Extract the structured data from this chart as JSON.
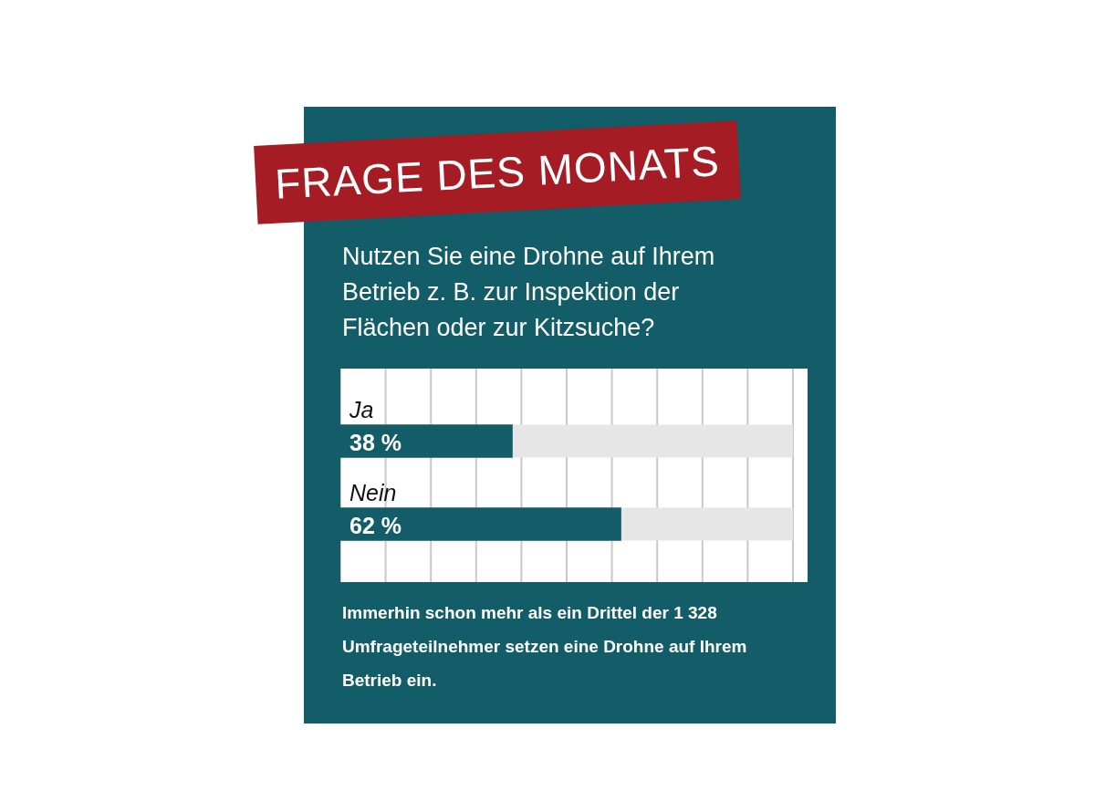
{
  "chart_data": {
    "type": "bar",
    "orientation": "horizontal",
    "title": "FRAGE DES MONATS",
    "subtitle": "Nutzen Sie eine Drohne auf Ihrem Betrieb z. B. zur Inspektion der Flächen oder zur Kitzsuche?",
    "categories": [
      "Ja",
      "Nein"
    ],
    "values": [
      38,
      62
    ],
    "value_labels": [
      "38 %",
      "62 %"
    ],
    "color": "#135d69",
    "xlim": [
      0,
      100
    ],
    "xticks": [
      {
        "value": 0,
        "label": null
      },
      {
        "value": 10,
        "label": null
      },
      {
        "value": 20,
        "label": null
      },
      {
        "value": 30,
        "label": null
      },
      {
        "value": 40,
        "label": null
      },
      {
        "value": 50,
        "label": null
      },
      {
        "value": 60,
        "label": null
      },
      {
        "value": 70,
        "label": null
      },
      {
        "value": 80,
        "label": null
      },
      {
        "value": 90,
        "label": null
      },
      {
        "value": 100,
        "label": null
      }
    ],
    "grid": "x",
    "legend": false,
    "annotations": [
      "Immerhin schon mehr als ein Drittel der 1 328 Umfrageteilnehmer setzen eine Drohne auf Ihrem Betrieb ein."
    ]
  }
}
